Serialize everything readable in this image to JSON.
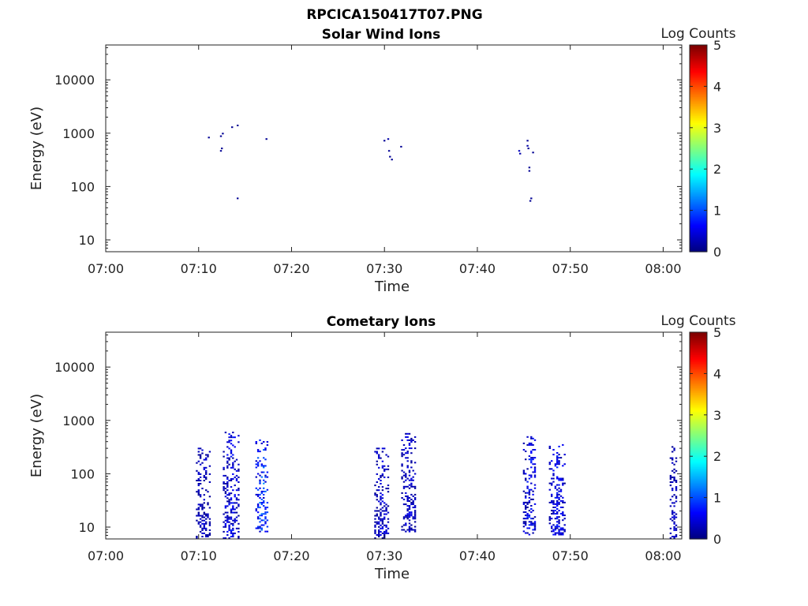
{
  "figure": {
    "title": "RPCICA150417T07.PNG"
  },
  "chart_data": [
    {
      "type": "heatmap",
      "title": "Solar Wind Ions",
      "xlabel": "Time",
      "ylabel": "Energy (eV)",
      "x_range": [
        "07:00",
        "08:02"
      ],
      "x_ticks": [
        "07:00",
        "07:10",
        "07:20",
        "07:30",
        "07:40",
        "07:50",
        "08:00"
      ],
      "y_scale": "log",
      "y_range": [
        6,
        45000
      ],
      "y_ticks": [
        10,
        100,
        1000,
        10000
      ],
      "y_tick_labels": [
        "10",
        "100",
        "1000",
        "10000"
      ],
      "colorbar": {
        "label": "Log Counts",
        "min": 0,
        "max": 5,
        "ticks": [
          "0",
          "1",
          "2",
          "3",
          "4",
          "5"
        ],
        "colormap": "jet"
      },
      "cells": [
        {
          "t": 11.0,
          "e": 800,
          "c": 0.1
        },
        {
          "t": 12.3,
          "e": 850,
          "c": 0.1
        },
        {
          "t": 12.5,
          "e": 950,
          "c": 0.1
        },
        {
          "t": 12.3,
          "e": 450,
          "c": 0.1
        },
        {
          "t": 12.4,
          "e": 500,
          "c": 0.1
        },
        {
          "t": 13.5,
          "e": 1250,
          "c": 0.1
        },
        {
          "t": 14.1,
          "e": 1350,
          "c": 0.1
        },
        {
          "t": 14.1,
          "e": 58,
          "c": 0.1
        },
        {
          "t": 17.2,
          "e": 750,
          "c": 0.1
        },
        {
          "t": 29.9,
          "e": 700,
          "c": 0.1
        },
        {
          "t": 30.3,
          "e": 750,
          "c": 0.2
        },
        {
          "t": 30.4,
          "e": 450,
          "c": 0.1
        },
        {
          "t": 30.5,
          "e": 350,
          "c": 0.1
        },
        {
          "t": 30.7,
          "e": 310,
          "c": 0.1
        },
        {
          "t": 31.7,
          "e": 540,
          "c": 0.1
        },
        {
          "t": 44.4,
          "e": 450,
          "c": 0.3
        },
        {
          "t": 44.5,
          "e": 400,
          "c": 0.2
        },
        {
          "t": 45.3,
          "e": 700,
          "c": 0.1
        },
        {
          "t": 45.3,
          "e": 560,
          "c": 0.2
        },
        {
          "t": 45.4,
          "e": 500,
          "c": 0.1
        },
        {
          "t": 45.9,
          "e": 420,
          "c": 0.1
        },
        {
          "t": 45.5,
          "e": 220,
          "c": 0.1
        },
        {
          "t": 45.5,
          "e": 190,
          "c": 0.1
        },
        {
          "t": 45.7,
          "e": 58,
          "c": 0.1
        },
        {
          "t": 45.6,
          "e": 52,
          "c": 0.1
        }
      ]
    },
    {
      "type": "heatmap",
      "title": "Cometary Ions",
      "xlabel": "Time",
      "ylabel": "Energy (eV)",
      "x_range": [
        "07:00",
        "08:02"
      ],
      "x_ticks": [
        "07:00",
        "07:10",
        "07:20",
        "07:30",
        "07:40",
        "07:50",
        "08:00"
      ],
      "y_scale": "log",
      "y_range": [
        6,
        45000
      ],
      "y_ticks": [
        10,
        100,
        1000,
        10000
      ],
      "y_tick_labels": [
        "10",
        "100",
        "1000",
        "10000"
      ],
      "colorbar": {
        "label": "Log Counts",
        "min": 0,
        "max": 5,
        "ticks": [
          "0",
          "1",
          "2",
          "3",
          "4",
          "5"
        ],
        "colormap": "jet"
      },
      "bursts": [
        {
          "t0": 9.7,
          "t1": 11.1,
          "e_lo": 6,
          "e_hi": 300,
          "c_lo": 0.1,
          "c_hi": 0.5
        },
        {
          "t0": 12.6,
          "t1": 14.2,
          "e_lo": 6,
          "e_hi": 600,
          "c_lo": 0.1,
          "c_hi": 0.8
        },
        {
          "t0": 16.1,
          "t1": 17.4,
          "e_lo": 8,
          "e_hi": 450,
          "c_lo": 0.3,
          "c_hi": 1.4
        },
        {
          "t0": 28.9,
          "t1": 30.4,
          "e_lo": 6,
          "e_hi": 300,
          "c_lo": 0.1,
          "c_hi": 0.6
        },
        {
          "t0": 31.8,
          "t1": 33.3,
          "e_lo": 8,
          "e_hi": 550,
          "c_lo": 0.1,
          "c_hi": 0.6
        },
        {
          "t0": 44.9,
          "t1": 46.3,
          "e_lo": 7,
          "e_hi": 500,
          "c_lo": 0.1,
          "c_hi": 0.9
        },
        {
          "t0": 47.7,
          "t1": 49.4,
          "e_lo": 7,
          "e_hi": 350,
          "c_lo": 0.1,
          "c_hi": 0.8
        },
        {
          "t0": 60.7,
          "t1": 61.4,
          "e_lo": 6,
          "e_hi": 380,
          "c_lo": 0.1,
          "c_hi": 0.5
        }
      ]
    }
  ]
}
